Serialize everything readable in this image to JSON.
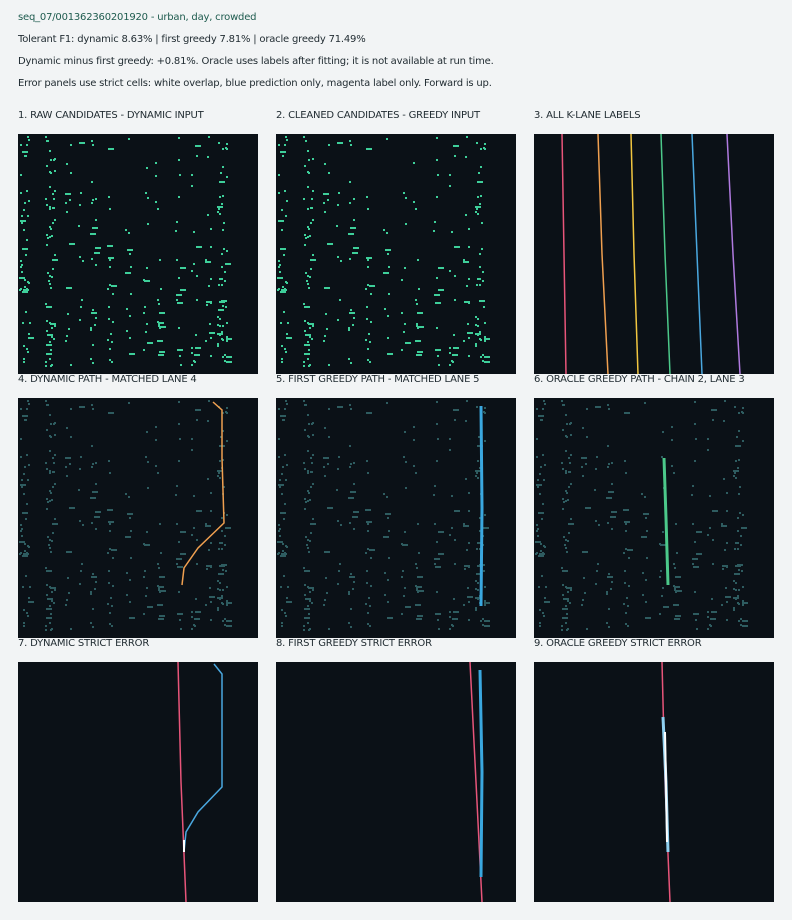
{
  "header": {
    "sequence": "seq_07/001362360201920 - urban, day, crowded",
    "f1_summary": "Tolerant F1: dynamic 8.63% | first greedy 7.81% | oracle greedy 71.49%",
    "comparison_note": "Dynamic minus first greedy: +0.81%. Oracle uses labels after fitting; it is not available at run time.",
    "legend_note": "Error panels use strict cells: white overlap, blue prediction only, magenta label only. Forward is up."
  },
  "panels": [
    {
      "title": "1. RAW CANDIDATES - DYNAMIC INPUT"
    },
    {
      "title": "2. CLEANED CANDIDATES - GREEDY INPUT"
    },
    {
      "title": "3. ALL K-LANE LABELS"
    },
    {
      "title": "4. DYNAMIC PATH - MATCHED LANE 4"
    },
    {
      "title": "5. FIRST GREEDY PATH - MATCHED LANE 5"
    },
    {
      "title": "6. ORACLE GREEDY PATH - CHAIN 2, LANE 3"
    },
    {
      "title": "7. DYNAMIC STRICT ERROR"
    },
    {
      "title": "8. FIRST GREEDY STRICT ERROR"
    },
    {
      "title": "9. ORACLE GREEDY STRICT ERROR"
    }
  ]
}
